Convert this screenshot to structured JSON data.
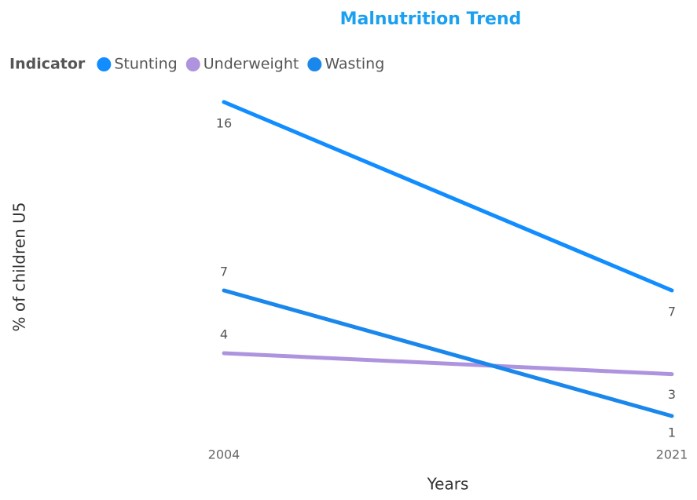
{
  "chart_data": {
    "type": "line",
    "title": "Malnutrition Trend",
    "legend_title": "Indicator",
    "x_label": "Years",
    "y_label": "% of children U5",
    "categories": [
      "2004",
      "2021"
    ],
    "series": [
      {
        "name": "Stunting",
        "color": "#118DFF",
        "values": [
          16,
          7
        ]
      },
      {
        "name": "Underweight",
        "color": "#AE94DE",
        "values": [
          4,
          3
        ]
      },
      {
        "name": "Wasting",
        "color": "#1A87EC",
        "values": [
          7,
          1
        ]
      }
    ]
  }
}
